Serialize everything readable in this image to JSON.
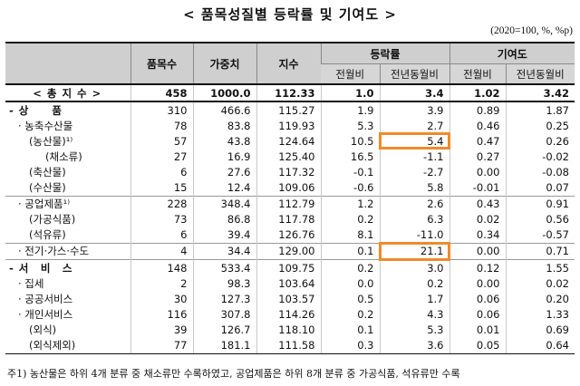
{
  "title": "< 품목성질별 등락률 및 기여도 >",
  "unit": "(2020=100, %, %p)",
  "headers": {
    "item": "",
    "count": "품목수",
    "weight": "가중치",
    "index": "지수",
    "change_group": "등락률",
    "contrib_group": "기여도",
    "mom": "전월비",
    "yoy": "전년동월비",
    "c_mom": "전월비",
    "c_yoy": "전년동월비"
  },
  "rows": [
    {
      "name": "< 총 지 수 >",
      "count": "458",
      "weight": "1000.0",
      "index": "112.33",
      "mom": "1.0",
      "yoy": "3.4",
      "c_mom": "1.02",
      "c_yoy": "3.42"
    },
    {
      "name": "- 상　　품",
      "count": "310",
      "weight": "466.6",
      "index": "115.27",
      "mom": "1.9",
      "yoy": "3.9",
      "c_mom": "0.89",
      "c_yoy": "1.87"
    },
    {
      "name": "· 농축수산물",
      "count": "78",
      "weight": "83.8",
      "index": "119.93",
      "mom": "5.3",
      "yoy": "2.7",
      "c_mom": "0.46",
      "c_yoy": "0.25"
    },
    {
      "name": "(농산물)¹⁾",
      "count": "57",
      "weight": "43.8",
      "index": "124.64",
      "mom": "10.5",
      "yoy": "5.4",
      "c_mom": "0.47",
      "c_yoy": "0.26"
    },
    {
      "name": "(채소류)",
      "count": "27",
      "weight": "16.9",
      "index": "125.40",
      "mom": "16.5",
      "yoy": "-1.1",
      "c_mom": "0.27",
      "c_yoy": "-0.02"
    },
    {
      "name": "(축산물)",
      "count": "6",
      "weight": "27.6",
      "index": "117.32",
      "mom": "-0.1",
      "yoy": "-2.7",
      "c_mom": "0.00",
      "c_yoy": "-0.08"
    },
    {
      "name": "(수산물)",
      "count": "15",
      "weight": "12.4",
      "index": "109.06",
      "mom": "-0.6",
      "yoy": "5.8",
      "c_mom": "-0.01",
      "c_yoy": "0.07"
    },
    {
      "name": "· 공업제품¹⁾",
      "count": "228",
      "weight": "348.4",
      "index": "112.79",
      "mom": "1.2",
      "yoy": "2.6",
      "c_mom": "0.43",
      "c_yoy": "0.91"
    },
    {
      "name": "(가공식품)",
      "count": "73",
      "weight": "86.8",
      "index": "117.78",
      "mom": "0.2",
      "yoy": "6.3",
      "c_mom": "0.02",
      "c_yoy": "0.56"
    },
    {
      "name": "(석유류)",
      "count": "6",
      "weight": "39.4",
      "index": "126.76",
      "mom": "8.1",
      "yoy": "-11.0",
      "c_mom": "0.34",
      "c_yoy": "-0.57"
    },
    {
      "name": "· 전기·가스·수도",
      "count": "4",
      "weight": "34.4",
      "index": "129.00",
      "mom": "0.1",
      "yoy": "21.1",
      "c_mom": "0.00",
      "c_yoy": "0.71"
    },
    {
      "name": "- 서　비　스",
      "count": "148",
      "weight": "533.4",
      "index": "109.75",
      "mom": "0.2",
      "yoy": "3.0",
      "c_mom": "0.12",
      "c_yoy": "1.55"
    },
    {
      "name": "· 집세",
      "count": "2",
      "weight": "98.3",
      "index": "103.64",
      "mom": "0.0",
      "yoy": "0.2",
      "c_mom": "0.00",
      "c_yoy": "0.02"
    },
    {
      "name": "· 공공서비스",
      "count": "30",
      "weight": "127.3",
      "index": "103.57",
      "mom": "0.5",
      "yoy": "1.7",
      "c_mom": "0.06",
      "c_yoy": "0.20"
    },
    {
      "name": "· 개인서비스",
      "count": "116",
      "weight": "307.8",
      "index": "114.26",
      "mom": "0.2",
      "yoy": "4.3",
      "c_mom": "0.06",
      "c_yoy": "1.33"
    },
    {
      "name": "(외식)",
      "count": "39",
      "weight": "126.7",
      "index": "118.10",
      "mom": "0.1",
      "yoy": "5.3",
      "c_mom": "0.01",
      "c_yoy": "0.69"
    },
    {
      "name": "(외식제외)",
      "count": "77",
      "weight": "181.1",
      "index": "111.58",
      "mom": "0.3",
      "yoy": "3.6",
      "c_mom": "0.05",
      "c_yoy": "0.64"
    }
  ],
  "highlight_color": "#f08a2a",
  "footnote": "주1) 농산물은 하위 4개 분류 중 채소류만 수록하였고, 공업제품은 하위 8개 분류 중 가공식품, 석유류만 수록"
}
